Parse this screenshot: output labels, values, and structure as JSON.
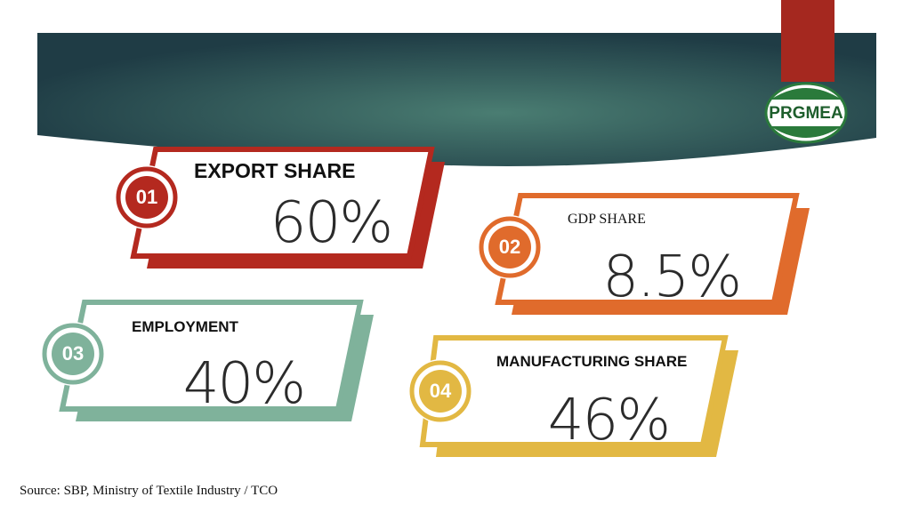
{
  "logo": "PRGMEA",
  "cards": [
    {
      "number": "01",
      "label": "EXPORT SHARE",
      "value": "60%"
    },
    {
      "number": "02",
      "label": "GDP SHARE",
      "value": "8.5%"
    },
    {
      "number": "03",
      "label": "EMPLOYMENT",
      "value": "40%"
    },
    {
      "number": "04",
      "label": "MANUFACTURING SHARE",
      "value": "46%"
    }
  ],
  "source": "Source: SBP, Ministry of Textile Industry / TCO"
}
